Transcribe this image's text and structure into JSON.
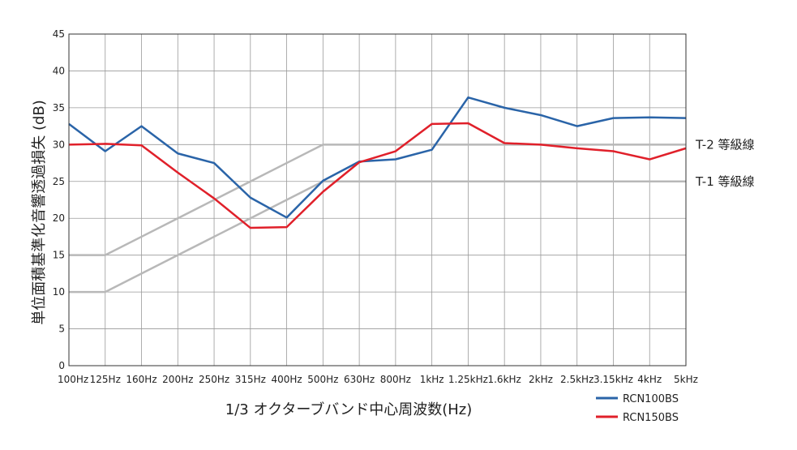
{
  "chart_data": {
    "type": "line",
    "xlabel": "1/3 オクターブバンド中心周波数(Hz)",
    "ylabel": "単位面積基準化音響透過損失 (dB)",
    "categories": [
      "100Hz",
      "125Hz",
      "160Hz",
      "200Hz",
      "250Hz",
      "315Hz",
      "400Hz",
      "500Hz",
      "630Hz",
      "800Hz",
      "1kHz",
      "1.25kHz",
      "1.6kHz",
      "2kHz",
      "2.5kHz",
      "3.15kHz",
      "4kHz",
      "5kHz"
    ],
    "ylim": [
      0,
      45
    ],
    "yticks": [
      0,
      5,
      10,
      15,
      20,
      25,
      30,
      35,
      40,
      45
    ],
    "grid": true,
    "legend_position": "bottom-right",
    "series": [
      {
        "name": "RCN100BS",
        "color": "#2a64a8",
        "values": [
          32.8,
          29.1,
          32.5,
          28.8,
          27.5,
          22.8,
          20.1,
          25.1,
          27.7,
          28.0,
          29.3,
          36.4,
          35.0,
          34.0,
          32.5,
          33.6,
          33.7,
          33.6
        ]
      },
      {
        "name": "RCN150BS",
        "color": "#e0202a",
        "values": [
          30.0,
          30.1,
          29.9,
          26.2,
          22.7,
          18.7,
          18.8,
          23.6,
          27.6,
          29.1,
          32.8,
          32.9,
          30.2,
          30.0,
          29.5,
          29.1,
          28.0,
          29.5
        ]
      }
    ],
    "reference_lines": [
      {
        "label": "T-2 等級線",
        "color": "#b8b8b8",
        "values": [
          15,
          15,
          17.5,
          20,
          22.5,
          25,
          27.5,
          30,
          30,
          30,
          30,
          30,
          30,
          30,
          30,
          30,
          30,
          30
        ]
      },
      {
        "label": "T-1 等級線",
        "color": "#b8b8b8",
        "values": [
          10,
          10,
          12.5,
          15,
          17.5,
          20,
          22.5,
          25,
          25,
          25,
          25,
          25,
          25,
          25,
          25,
          25,
          25,
          25
        ]
      }
    ]
  }
}
